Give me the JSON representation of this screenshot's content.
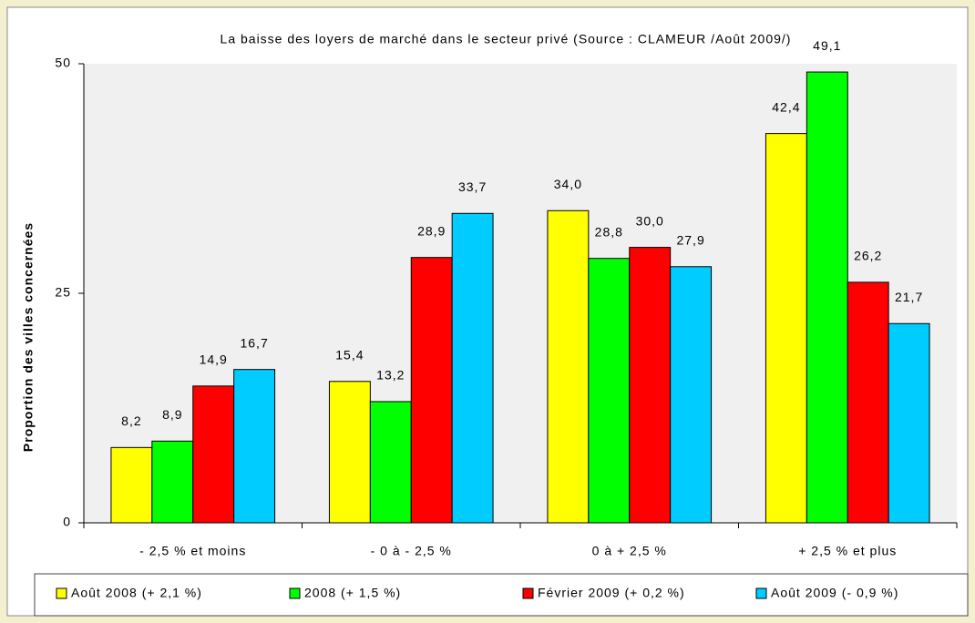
{
  "chart_data": {
    "type": "bar",
    "title": "La baisse des loyers de marché dans le secteur privé (Source : CLAMEUR /Août 2009/)",
    "y_label": "Proportion des villes concernées",
    "categories": [
      "- 2,5 % et moins",
      "- 0 à - 2,5 %",
      "0 à + 2,5 %",
      "+ 2,5 % et plus"
    ],
    "series": [
      {
        "name": "Août 2008 (+ 2,1 %)",
        "color": "#ffff00",
        "values": [
          8.2,
          15.4,
          34.0,
          42.4
        ],
        "value_labels": [
          "8,2",
          "15,4",
          "34,0",
          "42,4"
        ]
      },
      {
        "name": "2008 (+ 1,5 %)",
        "color": "#00ff00",
        "values": [
          8.9,
          13.2,
          28.8,
          49.1
        ],
        "value_labels": [
          "8,9",
          "13,2",
          "28,8",
          "49,1"
        ]
      },
      {
        "name": "Février 2009 (+ 0,2 %)",
        "color": "#ff0000",
        "values": [
          14.9,
          28.9,
          30.0,
          26.2
        ],
        "value_labels": [
          "14,9",
          "28,9",
          "30,0",
          "26,2"
        ]
      },
      {
        "name": "Août 2009 (- 0,9 %)",
        "color": "#00ccff",
        "values": [
          16.7,
          33.7,
          27.9,
          21.7
        ],
        "value_labels": [
          "16,7",
          "33,7",
          "27,9",
          "21,7"
        ]
      }
    ],
    "ylim": [
      0,
      50
    ],
    "yticks": [
      0,
      25,
      50
    ],
    "legend": "bottom"
  }
}
